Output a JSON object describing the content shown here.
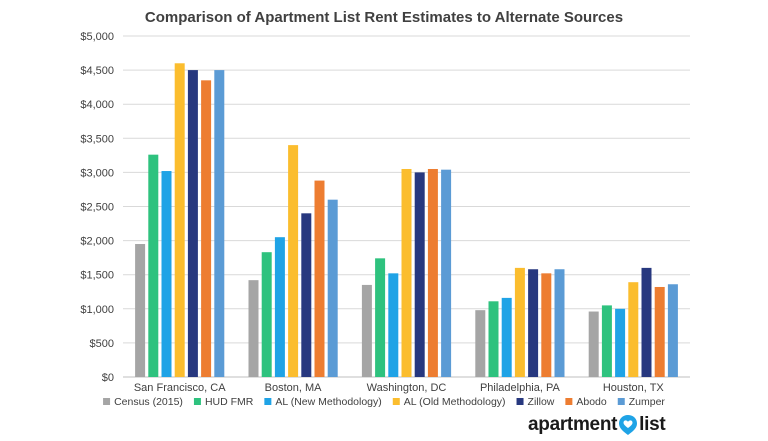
{
  "chart_data": {
    "type": "bar",
    "title": "Comparison of Apartment List Rent Estimates to Alternate Sources",
    "categories": [
      "San Francisco, CA",
      "Boston, MA",
      "Washington, DC",
      "Philadelphia, PA",
      "Houston, TX"
    ],
    "series": [
      {
        "name": "Census (2015)",
        "color": "#A5A5A5",
        "values": [
          1950,
          1420,
          1350,
          980,
          960
        ]
      },
      {
        "name": "HUD FMR",
        "color": "#2EC27E",
        "values": [
          3260,
          1830,
          1740,
          1110,
          1050
        ]
      },
      {
        "name": "AL (New Methodology)",
        "color": "#1FA3E6",
        "values": [
          3020,
          2050,
          1520,
          1160,
          1000
        ]
      },
      {
        "name": "AL (Old Methodology)",
        "color": "#FBBD2E",
        "values": [
          4600,
          3400,
          3050,
          1600,
          1390
        ]
      },
      {
        "name": "Zillow",
        "color": "#27387F",
        "values": [
          4500,
          2400,
          3000,
          1580,
          1600
        ]
      },
      {
        "name": "Abodo",
        "color": "#ED7D31",
        "values": [
          4350,
          2880,
          3050,
          1520,
          1320
        ]
      },
      {
        "name": "Zumper",
        "color": "#5B9BD5",
        "values": [
          4500,
          2600,
          3040,
          1580,
          1360
        ]
      }
    ],
    "y_ticks": [
      "$0",
      "$500",
      "$1,000",
      "$1,500",
      "$2,000",
      "$2,500",
      "$3,000",
      "$3,500",
      "$4,000",
      "$4,500",
      "$5,000"
    ],
    "ylim": [
      0,
      5000
    ],
    "grid": true,
    "legend_position": "bottom"
  },
  "brand": {
    "text_left": "apartment",
    "text_right": "list",
    "pin_color": "#1FA3E6"
  }
}
